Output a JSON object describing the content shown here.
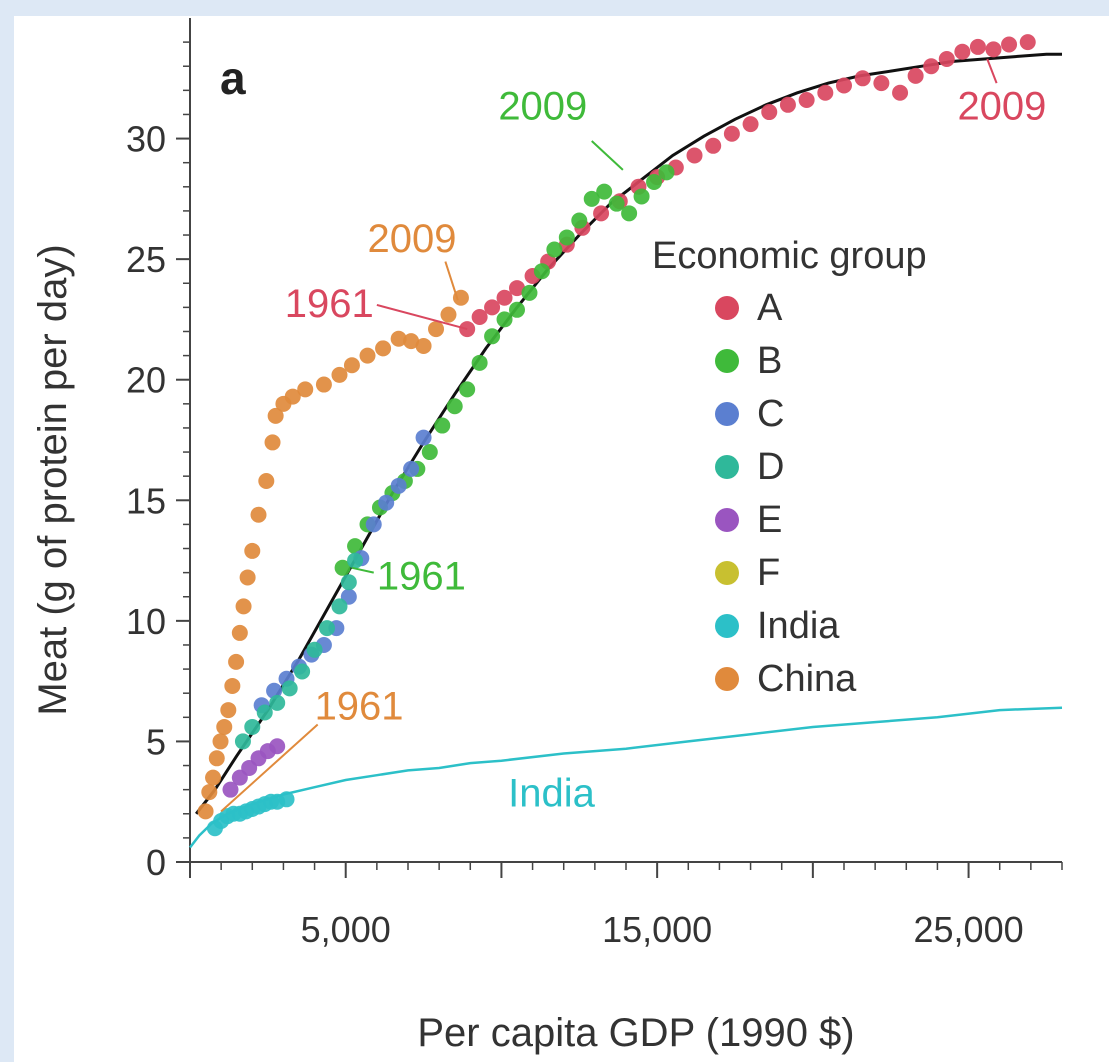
{
  "chart_data": {
    "type": "scatter",
    "panel_label": "a",
    "xlabel": "Per capita GDP (1990 $)",
    "ylabel": "Meat (g of protein per day)",
    "xlim": [
      0,
      28000
    ],
    "ylim": [
      0,
      35
    ],
    "x_ticks": [
      0,
      5000,
      10000,
      15000,
      20000,
      25000
    ],
    "x_tick_labels": [
      "5,000",
      "15,000",
      "25,000"
    ],
    "x_tick_label_values": [
      5000,
      15000,
      25000
    ],
    "y_ticks": [
      0,
      5,
      10,
      15,
      20,
      25,
      30
    ],
    "y_tick_labels": [
      "0",
      "5",
      "10",
      "15",
      "20",
      "25",
      "30"
    ],
    "legend": {
      "title": "Economic group",
      "position": "center-right",
      "entries": [
        {
          "label": "A",
          "color": "#d9475f"
        },
        {
          "label": "B",
          "color": "#3fba3a"
        },
        {
          "label": "C",
          "color": "#5b7fd0"
        },
        {
          "label": "D",
          "color": "#2fb89a"
        },
        {
          "label": "E",
          "color": "#9a55c0"
        },
        {
          "label": "F",
          "color": "#c8c030"
        },
        {
          "label": "India",
          "color": "#2cc0c8"
        },
        {
          "label": "China",
          "color": "#e08a3c"
        }
      ]
    },
    "series": [
      {
        "name": "A",
        "color": "#d9475f",
        "points": [
          [
            8900,
            22.1
          ],
          [
            9300,
            22.6
          ],
          [
            9700,
            23.0
          ],
          [
            10100,
            23.4
          ],
          [
            10500,
            23.8
          ],
          [
            11000,
            24.3
          ],
          [
            11500,
            24.9
          ],
          [
            12100,
            25.6
          ],
          [
            12600,
            26.3
          ],
          [
            13200,
            26.9
          ],
          [
            13800,
            27.4
          ],
          [
            14400,
            28.0
          ],
          [
            15000,
            28.4
          ],
          [
            15600,
            28.8
          ],
          [
            16200,
            29.3
          ],
          [
            16800,
            29.7
          ],
          [
            17400,
            30.2
          ],
          [
            18000,
            30.6
          ],
          [
            18600,
            31.1
          ],
          [
            19200,
            31.4
          ],
          [
            19800,
            31.6
          ],
          [
            20400,
            31.9
          ],
          [
            21000,
            32.2
          ],
          [
            21600,
            32.5
          ],
          [
            22200,
            32.3
          ],
          [
            22800,
            31.9
          ],
          [
            23300,
            32.6
          ],
          [
            23800,
            33.0
          ],
          [
            24300,
            33.3
          ],
          [
            24800,
            33.6
          ],
          [
            25300,
            33.8
          ],
          [
            25800,
            33.7
          ],
          [
            26300,
            33.9
          ],
          [
            26900,
            34.0
          ]
        ]
      },
      {
        "name": "B",
        "color": "#3fba3a",
        "points": [
          [
            4900,
            12.2
          ],
          [
            5300,
            13.1
          ],
          [
            5700,
            14.0
          ],
          [
            6100,
            14.7
          ],
          [
            6500,
            15.3
          ],
          [
            6900,
            15.8
          ],
          [
            7300,
            16.3
          ],
          [
            7700,
            17.0
          ],
          [
            8100,
            18.1
          ],
          [
            8500,
            18.9
          ],
          [
            8900,
            19.6
          ],
          [
            9300,
            20.7
          ],
          [
            9700,
            21.8
          ],
          [
            10100,
            22.5
          ],
          [
            10500,
            22.9
          ],
          [
            10900,
            23.6
          ],
          [
            11300,
            24.5
          ],
          [
            11700,
            25.4
          ],
          [
            12100,
            25.9
          ],
          [
            12500,
            26.6
          ],
          [
            12900,
            27.5
          ],
          [
            13300,
            27.8
          ],
          [
            13700,
            27.3
          ],
          [
            14100,
            26.9
          ],
          [
            14500,
            27.6
          ],
          [
            14900,
            28.2
          ],
          [
            15300,
            28.6
          ]
        ]
      },
      {
        "name": "C",
        "color": "#5b7fd0",
        "points": [
          [
            2300,
            6.5
          ],
          [
            2700,
            7.1
          ],
          [
            3100,
            7.6
          ],
          [
            3500,
            8.1
          ],
          [
            3900,
            8.6
          ],
          [
            4300,
            9.0
          ],
          [
            4700,
            9.7
          ],
          [
            5100,
            11.0
          ],
          [
            5500,
            12.6
          ],
          [
            5900,
            14.0
          ],
          [
            6300,
            14.9
          ],
          [
            6700,
            15.6
          ],
          [
            7100,
            16.3
          ],
          [
            7500,
            17.6
          ]
        ]
      },
      {
        "name": "D",
        "color": "#2fb89a",
        "points": [
          [
            1700,
            5.0
          ],
          [
            2000,
            5.6
          ],
          [
            2400,
            6.2
          ],
          [
            2800,
            6.6
          ],
          [
            3200,
            7.2
          ],
          [
            3600,
            7.9
          ],
          [
            4000,
            8.8
          ],
          [
            4400,
            9.7
          ],
          [
            4800,
            10.6
          ],
          [
            5100,
            11.6
          ],
          [
            5300,
            12.5
          ]
        ]
      },
      {
        "name": "E",
        "color": "#9a55c0",
        "points": [
          [
            1300,
            3.0
          ],
          [
            1600,
            3.5
          ],
          [
            1900,
            3.9
          ],
          [
            2200,
            4.3
          ],
          [
            2500,
            4.6
          ],
          [
            2800,
            4.8
          ]
        ]
      },
      {
        "name": "F",
        "color": "#c8c030",
        "points": []
      },
      {
        "name": "India",
        "color": "#2cc0c8",
        "points": [
          [
            800,
            1.4
          ],
          [
            1000,
            1.7
          ],
          [
            1200,
            1.9
          ],
          [
            1400,
            2.0
          ],
          [
            1600,
            2.0
          ],
          [
            1800,
            2.1
          ],
          [
            2000,
            2.2
          ],
          [
            2200,
            2.3
          ],
          [
            2400,
            2.4
          ],
          [
            2600,
            2.5
          ],
          [
            2800,
            2.5
          ],
          [
            3100,
            2.6
          ]
        ]
      },
      {
        "name": "China",
        "color": "#e08a3c",
        "points": [
          [
            500,
            2.1
          ],
          [
            620,
            2.9
          ],
          [
            740,
            3.5
          ],
          [
            860,
            4.3
          ],
          [
            980,
            5.0
          ],
          [
            1100,
            5.6
          ],
          [
            1230,
            6.3
          ],
          [
            1360,
            7.3
          ],
          [
            1480,
            8.3
          ],
          [
            1600,
            9.5
          ],
          [
            1720,
            10.6
          ],
          [
            1850,
            11.8
          ],
          [
            2000,
            12.9
          ],
          [
            2200,
            14.4
          ],
          [
            2450,
            15.8
          ],
          [
            2650,
            17.4
          ],
          [
            2750,
            18.5
          ],
          [
            3000,
            19.0
          ],
          [
            3300,
            19.3
          ],
          [
            3700,
            19.6
          ],
          [
            4300,
            19.8
          ],
          [
            4800,
            20.2
          ],
          [
            5200,
            20.6
          ],
          [
            5700,
            21.0
          ],
          [
            6200,
            21.3
          ],
          [
            6700,
            21.7
          ],
          [
            7100,
            21.6
          ],
          [
            7500,
            21.4
          ],
          [
            7900,
            22.1
          ],
          [
            8300,
            22.7
          ],
          [
            8700,
            23.4
          ]
        ]
      }
    ],
    "fits": [
      {
        "name": "",
        "color": "#111111",
        "points": [
          [
            200,
            2.0
          ],
          [
            800,
            3.0
          ],
          [
            1500,
            4.4
          ],
          [
            2500,
            6.3
          ],
          [
            3500,
            8.4
          ],
          [
            4500,
            10.7
          ],
          [
            5500,
            13.0
          ],
          [
            6500,
            15.3
          ],
          [
            7500,
            17.4
          ],
          [
            8500,
            19.4
          ],
          [
            9500,
            21.3
          ],
          [
            10500,
            23.0
          ],
          [
            11500,
            24.6
          ],
          [
            12500,
            26.0
          ],
          [
            13500,
            27.3
          ],
          [
            14500,
            28.3
          ],
          [
            15500,
            29.3
          ],
          [
            16500,
            30.1
          ],
          [
            17500,
            30.8
          ],
          [
            18500,
            31.4
          ],
          [
            19500,
            31.9
          ],
          [
            20500,
            32.3
          ],
          [
            21500,
            32.6
          ],
          [
            22500,
            32.8
          ],
          [
            23500,
            33.0
          ],
          [
            24500,
            33.2
          ],
          [
            25500,
            33.3
          ],
          [
            26500,
            33.4
          ],
          [
            27500,
            33.5
          ],
          [
            28000,
            33.5
          ]
        ]
      },
      {
        "name": "",
        "color": "#2cc0c8",
        "points": [
          [
            0,
            0.6
          ],
          [
            300,
            1.1
          ],
          [
            700,
            1.6
          ],
          [
            1200,
            2.0
          ],
          [
            2000,
            2.4
          ],
          [
            3000,
            2.8
          ],
          [
            4000,
            3.1
          ],
          [
            5000,
            3.4
          ],
          [
            6000,
            3.6
          ],
          [
            7000,
            3.8
          ],
          [
            8000,
            3.9
          ],
          [
            9000,
            4.1
          ],
          [
            10000,
            4.2
          ],
          [
            12000,
            4.5
          ],
          [
            14000,
            4.7
          ],
          [
            16000,
            5.0
          ],
          [
            18000,
            5.3
          ],
          [
            20000,
            5.6
          ],
          [
            22000,
            5.8
          ],
          [
            24000,
            6.0
          ],
          [
            26000,
            6.3
          ],
          [
            28000,
            6.4
          ]
        ]
      }
    ],
    "annotations": [
      {
        "text": "2009",
        "color": "#d9475f",
        "x": 27500,
        "y": 30.8,
        "anchor": "end",
        "tip": [
          25600,
          33.3
        ],
        "text_at": [
          25900,
          32.3
        ]
      },
      {
        "text": "2009",
        "color": "#3fba3a",
        "x": 9900,
        "y": 30.8,
        "anchor": "start",
        "tip": [
          13900,
          28.7
        ],
        "text_at": [
          12900,
          29.9
        ]
      },
      {
        "text": "2009",
        "color": "#e08a3c",
        "x": 5700,
        "y": 25.3,
        "anchor": "start",
        "tip": [
          8600,
          23.3
        ],
        "text_at": [
          8200,
          24.9
        ]
      },
      {
        "text": "1961",
        "color": "#d9475f",
        "x": 5900,
        "y": 22.6,
        "anchor": "end",
        "tip": [
          8900,
          22.1
        ],
        "text_at": [
          6000,
          23.1
        ]
      },
      {
        "text": "1961",
        "color": "#3fba3a",
        "x": 6000,
        "y": 11.3,
        "anchor": "start",
        "tip": [
          5200,
          12.2
        ],
        "text_at": [
          5900,
          12.0
        ]
      },
      {
        "text": "1961",
        "color": "#e08a3c",
        "x": 4000,
        "y": 5.9,
        "anchor": "start",
        "tip": [
          1000,
          2.1
        ],
        "text_at": [
          4100,
          5.7
        ]
      },
      {
        "text": "India",
        "color": "#2cc0c8",
        "x": 13000,
        "y": 2.3,
        "anchor": "end"
      }
    ]
  }
}
